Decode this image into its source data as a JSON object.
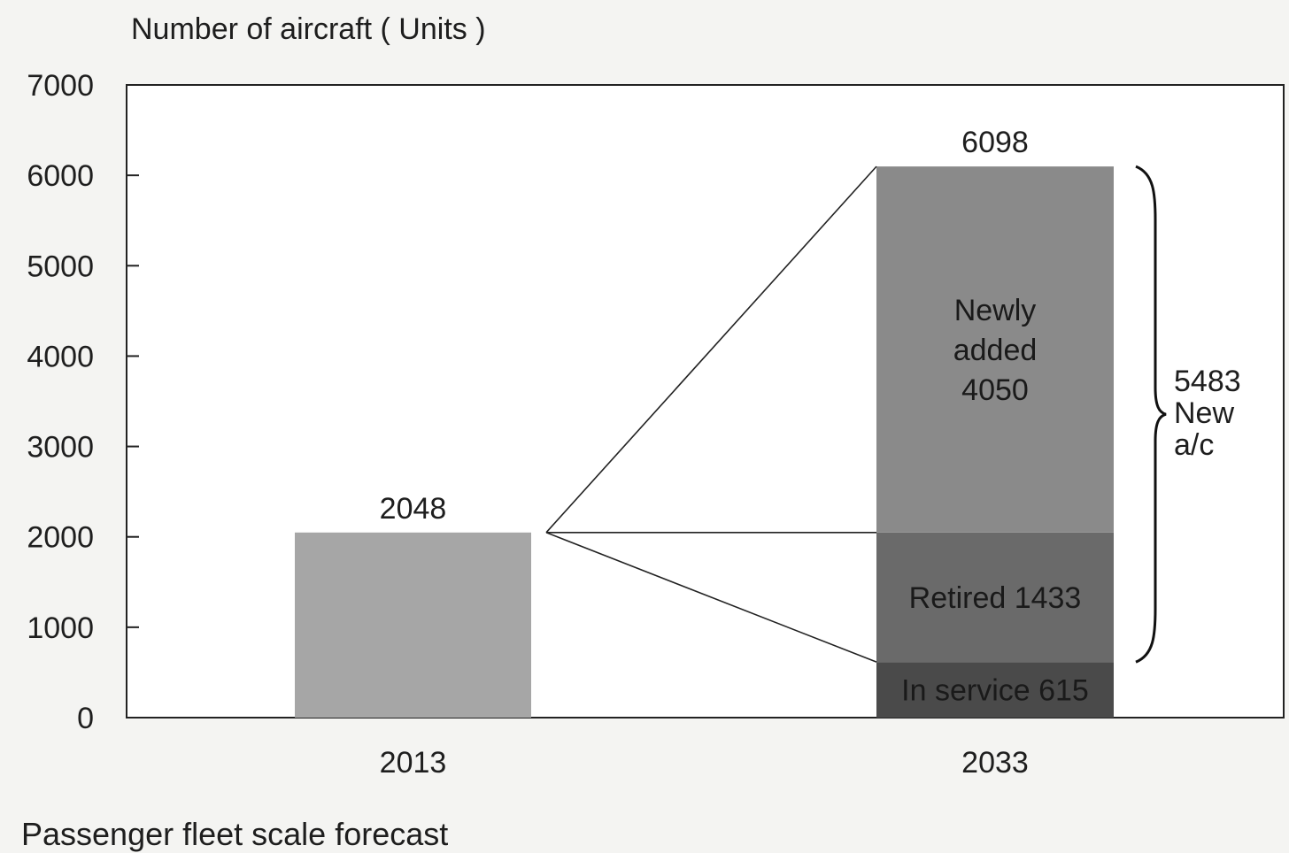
{
  "chart_data": {
    "type": "bar",
    "ylabel": "Number of aircraft ( Units )",
    "xlabel": "",
    "caption": "Passenger fleet scale forecast",
    "ylim": [
      0,
      7000
    ],
    "yticks": [
      0,
      1000,
      2000,
      3000,
      4000,
      5000,
      6000,
      7000
    ],
    "categories": [
      "2013",
      "2033"
    ],
    "series": [
      {
        "name": "In service",
        "values": [
          null,
          615
        ],
        "color": "#4a4a4a"
      },
      {
        "name": "Retired",
        "values": [
          null,
          1433
        ],
        "color": "#6a6a6a"
      },
      {
        "name": "Newly added",
        "values": [
          null,
          4050
        ],
        "color": "#8a8a8a"
      }
    ],
    "bar_2013": {
      "value": 2048,
      "color": "#a6a6a6"
    },
    "totals": [
      2048,
      6098
    ],
    "segment_labels": {
      "in_service": "In service 615",
      "retired": "Retired 1433",
      "newly_added": [
        "Newly",
        "added",
        "4050"
      ]
    },
    "brace_annotation": {
      "lines": [
        "5483",
        "New",
        "a/c"
      ]
    },
    "grid": false,
    "legend": "none"
  }
}
